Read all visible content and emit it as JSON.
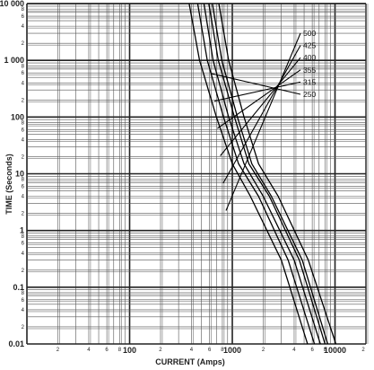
{
  "chart_data": {
    "type": "line",
    "title": "",
    "xlabel": "CURRENT (Amps)",
    "ylabel": "TIME (Seconds)",
    "x_scale": "log",
    "y_scale": "log",
    "xlim": [
      10,
      20000
    ],
    "ylim": [
      0.01,
      10000
    ],
    "grid": true,
    "x_major_ticks": [
      "100",
      "1000",
      "10000"
    ],
    "x_minor_ticks": [
      "2",
      "4",
      "6",
      "8",
      "2",
      "4",
      "6",
      "8",
      "2",
      "4",
      "6",
      "8",
      "2"
    ],
    "y_major_ticks": [
      "0.01",
      "0.1",
      "1",
      "10",
      "100",
      "1 000",
      "10 000"
    ],
    "y_minor_ticks": [
      "2",
      "4",
      "6",
      "8"
    ],
    "series": [
      {
        "name": "250",
        "color": "#000000",
        "x": [
          380,
          480,
          700,
          1000,
          1500,
          3000,
          5400
        ],
        "y": [
          10000,
          1000,
          100,
          15,
          4,
          0.3,
          0.01
        ]
      },
      {
        "name": "315",
        "color": "#000000",
        "x": [
          460,
          570,
          820,
          1150,
          1800,
          3500,
          6300
        ],
        "y": [
          10000,
          1000,
          100,
          15,
          4,
          0.3,
          0.01
        ]
      },
      {
        "name": "355",
        "color": "#000000",
        "x": [
          530,
          650,
          920,
          1300,
          2000,
          4000,
          7200
        ],
        "y": [
          10000,
          1000,
          100,
          15,
          4,
          0.3,
          0.01
        ]
      },
      {
        "name": "400",
        "color": "#000000",
        "x": [
          590,
          730,
          1050,
          1450,
          2300,
          4500,
          8000
        ],
        "y": [
          10000,
          1000,
          100,
          15,
          4,
          0.3,
          0.01
        ]
      },
      {
        "name": "425",
        "color": "#000000",
        "x": [
          640,
          790,
          1120,
          1550,
          2400,
          4800,
          8500
        ],
        "y": [
          10000,
          1000,
          100,
          15,
          4,
          0.3,
          0.01
        ]
      },
      {
        "name": "500",
        "color": "#000000",
        "x": [
          740,
          920,
          1300,
          1800,
          2800,
          5500,
          10200
        ],
        "y": [
          10000,
          1000,
          100,
          15,
          4,
          0.3,
          0.01
        ]
      }
    ],
    "rating_labels": [
      "500",
      "425",
      "400",
      "355",
      "315",
      "250"
    ]
  }
}
